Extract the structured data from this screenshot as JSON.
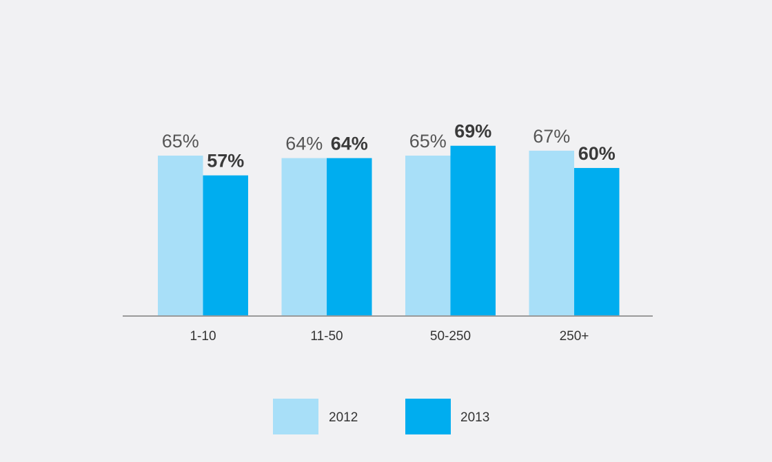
{
  "chart_data": {
    "type": "bar",
    "categories": [
      "1-10",
      "11-50",
      "50-250",
      "250+"
    ],
    "series": [
      {
        "name": "2012",
        "values": [
          65,
          64,
          65,
          67
        ],
        "labels": [
          "65%",
          "64%",
          "65%",
          "67%"
        ],
        "color": "#a8dff8"
      },
      {
        "name": "2013",
        "values": [
          57,
          64,
          69,
          60
        ],
        "labels": [
          "57%",
          "64%",
          "69%",
          "60%"
        ],
        "color": "#00adef"
      }
    ],
    "ylim": [
      0,
      100
    ],
    "grid": false,
    "legend_position": "bottom"
  },
  "style": {
    "background": "#f1f1f3",
    "axis_color": "#999999"
  }
}
